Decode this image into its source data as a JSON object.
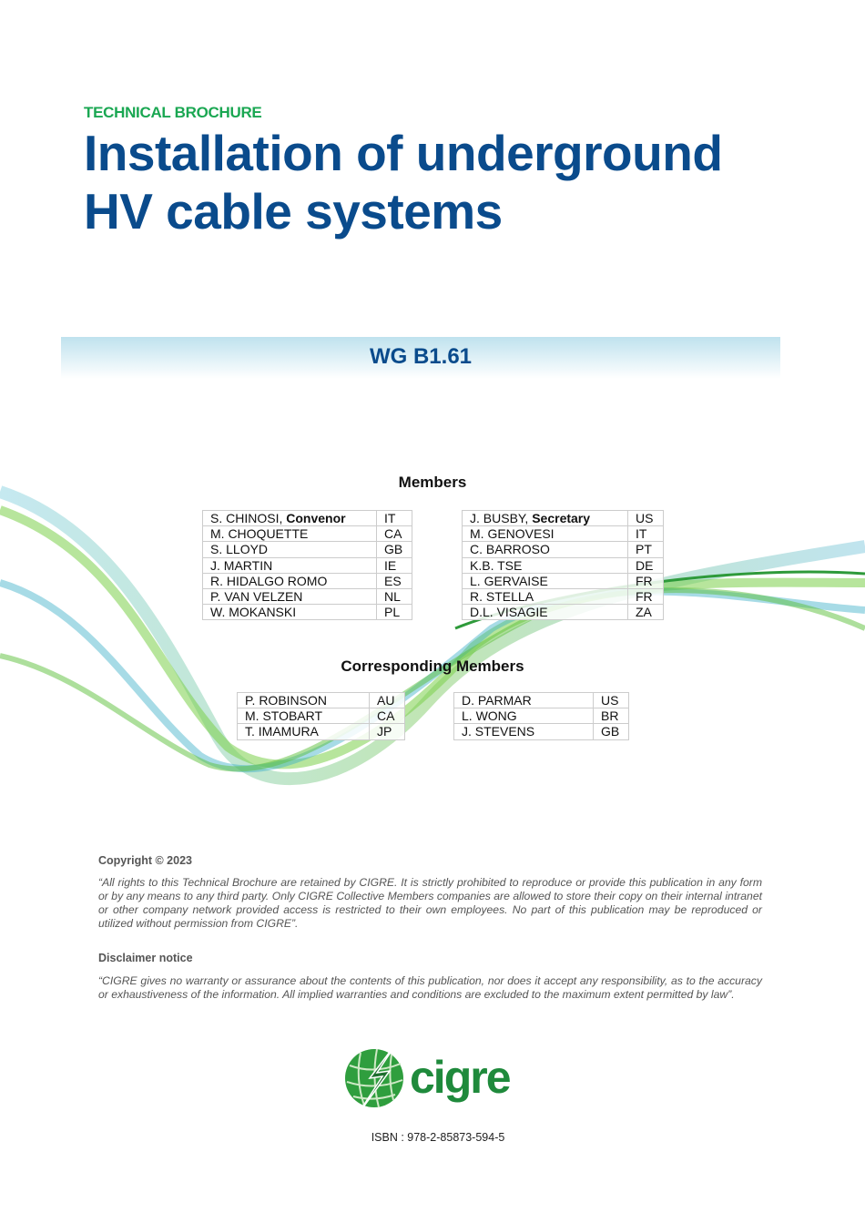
{
  "header": {
    "kicker": "TECHNICAL BROCHURE",
    "title_line1": "Installation of underground",
    "title_line2": "HV cable systems"
  },
  "banner": {
    "wg": "WG B1.61"
  },
  "members": {
    "heading": "Members",
    "left": [
      {
        "name": "S. CHINOSI, ",
        "role": "Convenor",
        "country": "IT"
      },
      {
        "name": "M. CHOQUETTE",
        "country": "CA"
      },
      {
        "name": "S. LLOYD",
        "country": "GB"
      },
      {
        "name": "J. MARTIN",
        "country": "IE"
      },
      {
        "name": "R. HIDALGO ROMO",
        "country": "ES"
      },
      {
        "name": "P. VAN VELZEN",
        "country": "NL"
      },
      {
        "name": "W. MOKANSKI",
        "country": "PL"
      }
    ],
    "right": [
      {
        "name": "J. BUSBY, ",
        "role": "Secretary",
        "country": "US"
      },
      {
        "name": "M. GENOVESI",
        "country": "IT"
      },
      {
        "name": "C. BARROSO",
        "country": "PT"
      },
      {
        "name": "K.B. TSE",
        "country": "DE"
      },
      {
        "name": "L. GERVAISE",
        "country": "FR"
      },
      {
        "name": "R. STELLA",
        "country": "FR"
      },
      {
        "name": "D.L. VISAGIE",
        "country": "ZA"
      }
    ]
  },
  "corresponding": {
    "heading": "Corresponding Members",
    "left": [
      {
        "name": "P. ROBINSON",
        "country": "AU"
      },
      {
        "name": "M. STOBART",
        "country": "CA"
      },
      {
        "name": "T. IMAMURA",
        "country": "JP"
      }
    ],
    "right": [
      {
        "name": "D. PARMAR",
        "country": "US"
      },
      {
        "name": "L. WONG",
        "country": "BR"
      },
      {
        "name": "J. STEVENS",
        "country": "GB"
      }
    ]
  },
  "legal": {
    "copyright_heading": "Copyright © 2023",
    "copyright_text": "“All rights to this Technical Brochure are retained by CIGRE.  It is strictly prohibited to reproduce or provide this publication in any form or by any means to any third party. Only CIGRE Collective Members companies are allowed to store their copy on their internal intranet or other company network provided access is restricted to their own employees. No part of this publication may be reproduced or utilized without permission from CIGRE”.",
    "disclaimer_heading": "Disclaimer notice",
    "disclaimer_text": "“CIGRE gives no warranty or assurance about the contents of this publication, nor does it accept any responsibility, as to the accuracy or exhaustiveness of the information. All implied warranties and conditions are excluded to the maximum extent permitted by law”."
  },
  "logo": {
    "text": "cigre",
    "icon": "globe-lightning-icon",
    "color": "#1f8a3c"
  },
  "isbn": "ISBN : 978-2-85873-594-5",
  "colors": {
    "title": "#0a4b8c",
    "kicker": "#1aa752"
  }
}
